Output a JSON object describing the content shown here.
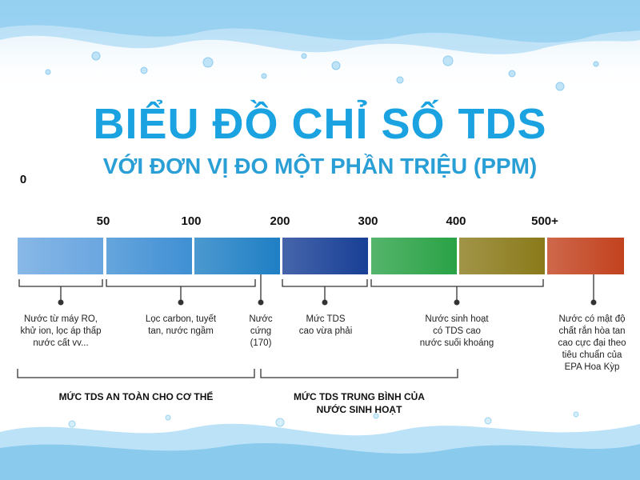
{
  "title": "BIỂU ĐỒ CHỈ SỐ TDS",
  "subtitle": "VỚI ĐƠN VỊ ĐO MỘT PHẦN TRIỆU (PPM)",
  "ticks": [
    "0",
    "50",
    "100",
    "200",
    "300",
    "400",
    "500+"
  ],
  "segments_colors": [
    "#6aa6e0",
    "#3f8fd4",
    "#1f7fc4",
    "#183f96",
    "#2aa246",
    "#8a7a1a",
    "#c2421e"
  ],
  "descriptions": {
    "ro": "Nước từ máy RO,\nkhử ion, lọc áp thấp\nnước cất vv...",
    "carbon": "Lọc carbon, tuyết\ntan, nước ngầm",
    "hard": "Nước\ncứng\n(170)",
    "moderate": "Mức TDS\ncao vừa phải",
    "living": "Nước sinh hoạt\ncó TDS cao\nnước suối khoáng",
    "high": "Nước có mật độ\nchất rắn hòa tan\ncao cực đại theo\ntiêu chuẩn của\nEPA Hoa Kỳp"
  },
  "categories": {
    "safe": "MỨC TDS AN TOÀN CHO CƠ THỂ",
    "medium": "MỨC TDS TRUNG BÌNH CỦA\nNƯỚC SINH HOẠT"
  }
}
